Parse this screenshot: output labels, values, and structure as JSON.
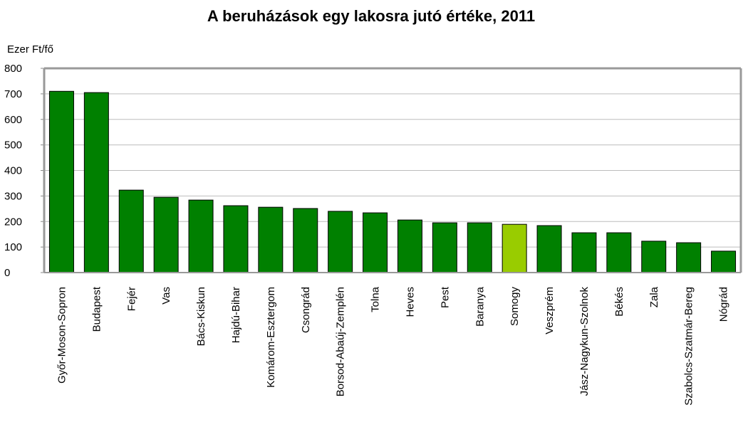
{
  "chart_data": {
    "type": "bar",
    "title": "A beruházások egy lakosra jutó értéke, 2011",
    "y_label": "Ezer Ft/fő",
    "categories": [
      "Győr-Moson-Sopron",
      "Budapest",
      "Fejér",
      "Vas",
      "Bács-Kiskun",
      "Hajdú-Bihar",
      "Komárom-Esztergom",
      "Csongrád",
      "Borsod-Abaúj-Zemplén",
      "Tolna",
      "Heves",
      "Pest",
      "Baranya",
      "Somogy",
      "Veszprém",
      "Jász-Nagykun-Szolnok",
      "Békés",
      "Zala",
      "Szabolcs-Szatmár-Bereg",
      "Nógrád"
    ],
    "values": [
      710,
      705,
      323,
      295,
      284,
      262,
      256,
      251,
      240,
      234,
      206,
      195,
      195,
      189,
      184,
      156,
      156,
      123,
      117,
      84
    ],
    "colors": [
      "#008000",
      "#008000",
      "#008000",
      "#008000",
      "#008000",
      "#008000",
      "#008000",
      "#008000",
      "#008000",
      "#008000",
      "#008000",
      "#008000",
      "#008000",
      "#99cc00",
      "#008000",
      "#008000",
      "#008000",
      "#008000",
      "#008000",
      "#008000"
    ],
    "ylim": [
      0,
      800
    ],
    "yticks": [
      0,
      100,
      200,
      300,
      400,
      500,
      600,
      700,
      800
    ],
    "grid": true
  }
}
